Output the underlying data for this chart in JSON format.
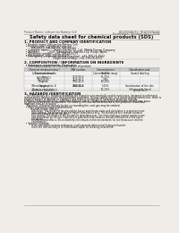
{
  "bg_color": "#f0ede8",
  "header_left": "Product Name: Lithium Ion Battery Cell",
  "header_right_line1": "BQ2000SN-B3 / BQ2000SN-B3",
  "header_right_line2": "Established / Revision: Dec.1 2008",
  "title": "Safety data sheet for chemical products (SDS)",
  "s1_title": "1. PRODUCT AND COMPANY IDENTIFICATION",
  "s1_lines": [
    "  • Product name: Lithium Ion Battery Cell",
    "  • Product code: Cylindrical-type cell",
    "         IHR-88550, IHR-88500L, IHR-88504",
    "  • Company name:      Sanyo Electric Co., Ltd.  Mobile Energy Company",
    "  • Address:            2001  Kaminaizen, Sumoto-City, Hyogo, Japan",
    "  • Telephone number:   +81-799-26-4111",
    "  • Fax number:  +81-799-26-4120",
    "  • Emergency telephone number (daytime): +81-799-26-3942",
    "                                     (Night and holiday): +81-799-26-4101"
  ],
  "s2_title": "2. COMPOSITION / INFORMATION ON INGREDIENTS",
  "s2_lines": [
    "  • Substance or preparation: Preparation",
    "  • Information about the chemical nature of product:"
  ],
  "tbl_header": [
    "Chemical chemical name /",
    "CAS number",
    "Concentration /",
    "Classification and"
  ],
  "tbl_header2": [
    "Common name",
    "",
    "Concentration range",
    "hazard labeling"
  ],
  "tbl_rows": [
    [
      "Lithium cobalt oxide\n(LiMnCoNiO₂)",
      "-",
      "30-40%",
      "-"
    ],
    [
      "Iron",
      "7439-89-6",
      "15-25%",
      "-"
    ],
    [
      "Aluminum",
      "7429-90-5",
      "2-8%",
      "-"
    ],
    [
      "Graphite\n(Mined or graphite-1)\n(Air-borne graphite-2)",
      "7782-42-5\n7782-44-2",
      "10-20%",
      "-"
    ],
    [
      "Copper",
      "7440-50-8",
      "5-15%",
      "Sensitization of the skin\ngroup No.2"
    ],
    [
      "Organic electrolyte",
      "-",
      "10-20%",
      "Inflammable liquid"
    ]
  ],
  "tbl_row_heights": [
    5.5,
    3.0,
    3.0,
    7.0,
    5.5,
    3.0
  ],
  "s3_title": "3. HAZARDS IDENTIFICATION",
  "s3_paras": [
    "   For this battery cell, chemical materials are stored in a hermetically sealed metal case, designed to withstand",
    "temperatures during routine transportation conditions. During normal use, as a result, during normal use, there is no",
    "physical danger of ignition or explosion and there is no danger of hazardous materials leakage.",
    "   Please, if exposed to a fire, added mechanical shocks, decomposed, when electrolyte release may issue.",
    "By gas release cannot be operated. The battery cell case will be breached at fire-performs. hazardous",
    "materials may be released.",
    "   Moreover, if heated strongly by the surrounding fire, soot gas may be emitted."
  ],
  "s3_bullet1": "  • Most important hazard and effects:",
  "s3_human": "        Human health effects:",
  "s3_human_lines": [
    "           Inhalation: The release of the electrolyte has an anesthesia action and stimulates in respiratory tract.",
    "           Skin contact: The release of the electrolyte stimulates a skin. The electrolyte skin contact causes a",
    "           sore and stimulation on the skin.",
    "           Eye contact: The release of the electrolyte stimulates eyes. The electrolyte eye contact causes a sore",
    "           and stimulation on the eye. Especially, a substance that causes a strong inflammation of the eye is",
    "           contained.",
    "           Environmental effects: Since a battery cell remains in the environment, do not throw out it into the",
    "           environment."
  ],
  "s3_bullet2": "  • Specific hazards:",
  "s3_specific": [
    "           If the electrolyte contacts with water, it will generate detrimental hydrogen fluoride.",
    "           Since the leak electrolyte is inflammable liquid, do not bring close to fire."
  ]
}
